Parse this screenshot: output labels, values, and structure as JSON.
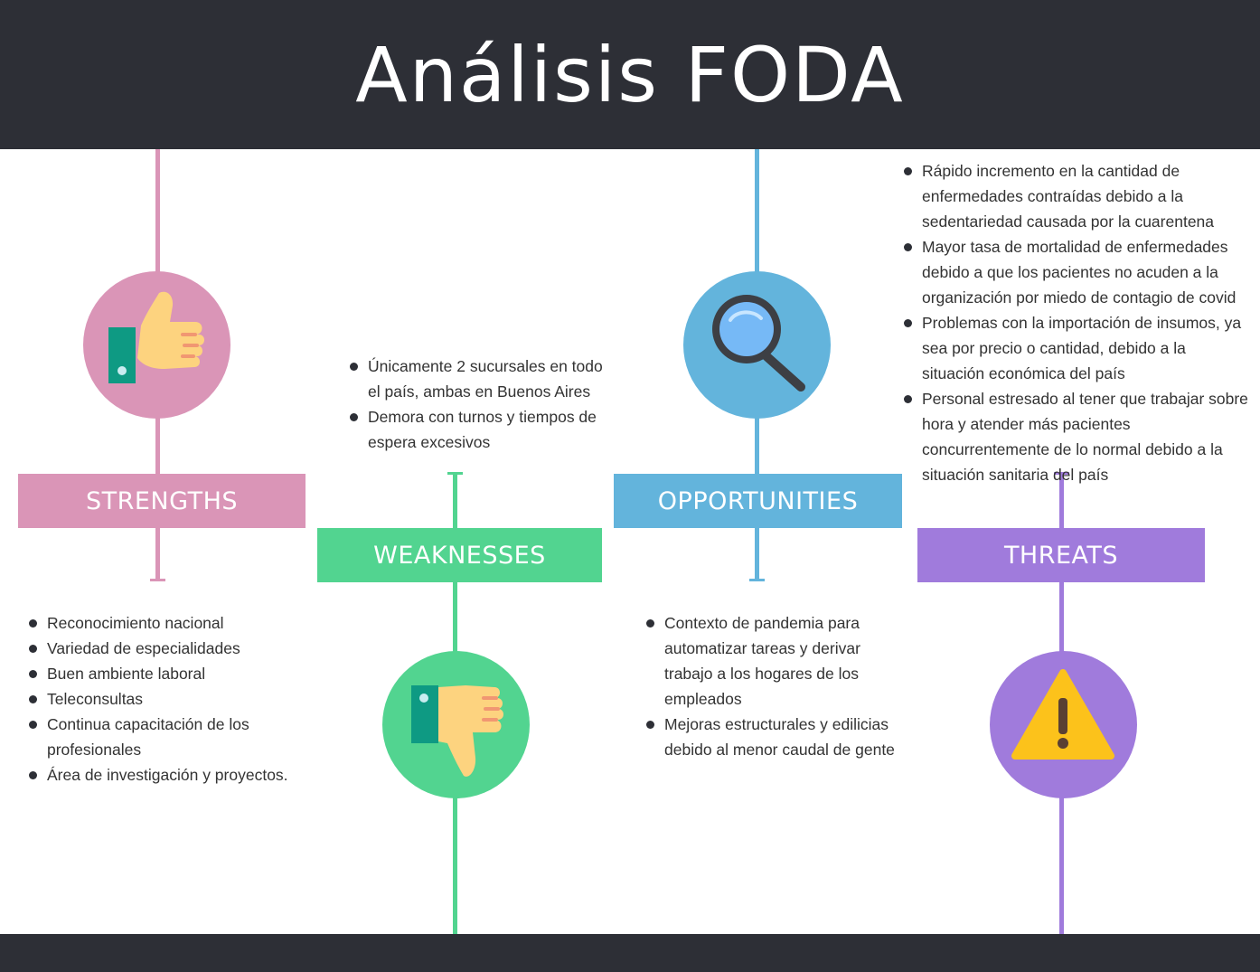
{
  "title": "Análisis FODA",
  "colors": {
    "header_bg": "#2d2f36",
    "strengths": "#da95b7",
    "weaknesses": "#52d490",
    "opportunities": "#63b4dc",
    "threats": "#a07bdc"
  },
  "strengths": {
    "label": "STRENGTHS",
    "icon": "thumbs-up-icon",
    "items": [
      "Reconocimiento nacional",
      "Variedad de especialidades",
      "Buen ambiente laboral",
      "Teleconsultas",
      "Continua capacitación de los profesionales",
      "Área de investigación y proyectos."
    ]
  },
  "weaknesses": {
    "label": "WEAKNESSES",
    "icon": "thumbs-down-icon",
    "items": [
      "Únicamente 2 sucursales en todo el país, ambas en Buenos Aires",
      "Demora con turnos y tiempos de espera excesivos"
    ]
  },
  "opportunities": {
    "label": "OPPORTUNITIES",
    "icon": "magnifier-icon",
    "items": [
      "Contexto de pandemia para automatizar tareas y derivar trabajo a los hogares de los empleados",
      "Mejoras estructurales y edilicias debido al menor caudal de gente"
    ]
  },
  "threats": {
    "label": "THREATS",
    "icon": "warning-icon",
    "items": [
      "Rápido incremento en la cantidad de enfermedades contraídas debido a la sedentariedad causada por la cuarentena",
      "Mayor tasa de mortalidad de enfermedades debido a que los pacientes no acuden a la organización por miedo de contagio de covid",
      "Problemas con la importación de insumos, ya sea por precio o cantidad, debido a la situación económica del país",
      "Personal estresado al tener que trabajar sobre hora y atender más pacientes concurrentemente de lo normal debido a la situación sanitaria del país"
    ]
  }
}
